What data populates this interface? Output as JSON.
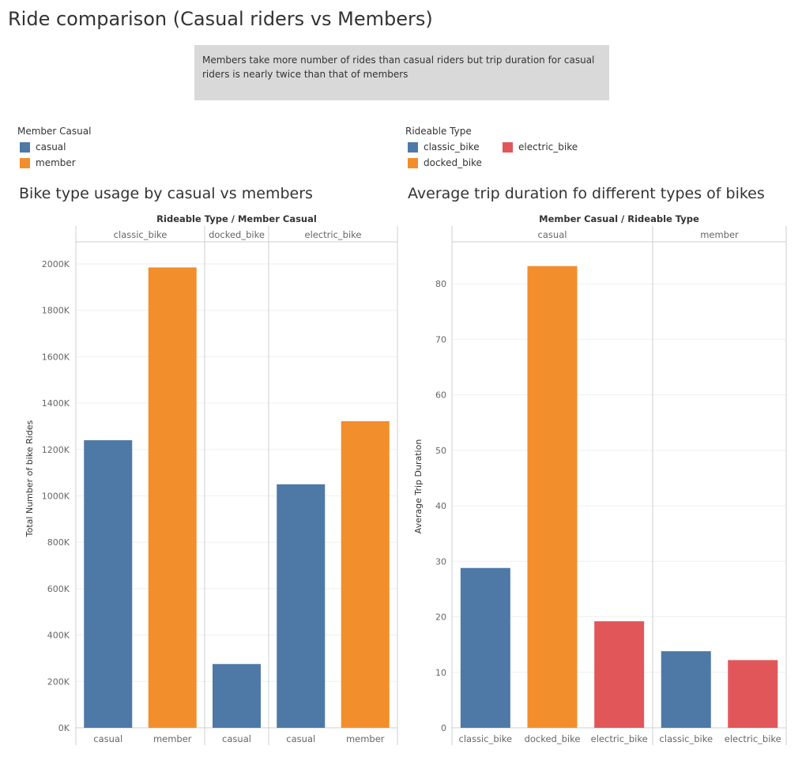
{
  "dashboard": {
    "title": "Ride comparison (Casual riders vs Members)",
    "note": "Members take more number of rides than casual riders but trip duration for casual riders is nearly twice than that of members"
  },
  "legends": {
    "member_casual": {
      "title": "Member Casual",
      "items": [
        {
          "label": "casual",
          "color": "#4e79a7"
        },
        {
          "label": "member",
          "color": "#f28e2b"
        }
      ]
    },
    "rideable_type": {
      "title": "Rideable Type",
      "items": [
        {
          "label": "classic_bike",
          "color": "#4e79a7"
        },
        {
          "label": "electric_bike",
          "color": "#e15759"
        },
        {
          "label": "docked_bike",
          "color": "#f28e2b"
        }
      ]
    }
  },
  "chart_data": [
    {
      "type": "bar",
      "title": "Bike type usage by casual vs members",
      "header": "Rideable Type  /  Member Casual",
      "ylabel": "Total Number of bike Rides",
      "ylim": [
        0,
        2150000
      ],
      "yticks": [
        0,
        200000,
        400000,
        600000,
        800000,
        1000000,
        1200000,
        1400000,
        1600000,
        1800000,
        2000000
      ],
      "ytick_labels": [
        "0K",
        "200K",
        "400K",
        "600K",
        "800K",
        "1000K",
        "1200K",
        "1400K",
        "1600K",
        "1800K",
        "2000K"
      ],
      "grid": true,
      "panes": [
        {
          "label": "classic_bike",
          "bars": [
            {
              "category": "casual",
              "value": 1240000,
              "color": "#4e79a7"
            },
            {
              "category": "member",
              "value": 1985000,
              "color": "#f28e2b"
            }
          ]
        },
        {
          "label": "docked_bike",
          "bars": [
            {
              "category": "casual",
              "value": 275000,
              "color": "#4e79a7"
            }
          ]
        },
        {
          "label": "electric_bike",
          "bars": [
            {
              "category": "casual",
              "value": 1050000,
              "color": "#4e79a7"
            },
            {
              "category": "member",
              "value": 1322000,
              "color": "#f28e2b"
            }
          ]
        }
      ]
    },
    {
      "type": "bar",
      "title": "Average trip duration fo different types of bikes",
      "header": "Member Casual  /  Rideable Type",
      "ylabel": "Average Trip Duration",
      "ylim": [
        0,
        87
      ],
      "yticks": [
        0,
        10,
        20,
        30,
        40,
        50,
        60,
        70,
        80
      ],
      "ytick_labels": [
        "0",
        "10",
        "20",
        "30",
        "40",
        "50",
        "60",
        "70",
        "80"
      ],
      "grid": true,
      "panes": [
        {
          "label": "casual",
          "bars": [
            {
              "category": "classic_bike",
              "value": 28.8,
              "color": "#4e79a7"
            },
            {
              "category": "docked_bike",
              "value": 83.2,
              "color": "#f28e2b"
            },
            {
              "category": "electric_bike",
              "value": 19.2,
              "color": "#e15759"
            }
          ]
        },
        {
          "label": "member",
          "bars": [
            {
              "category": "classic_bike",
              "value": 13.8,
              "color": "#4e79a7"
            },
            {
              "category": "electric_bike",
              "value": 12.2,
              "color": "#e15759"
            }
          ]
        }
      ]
    }
  ]
}
